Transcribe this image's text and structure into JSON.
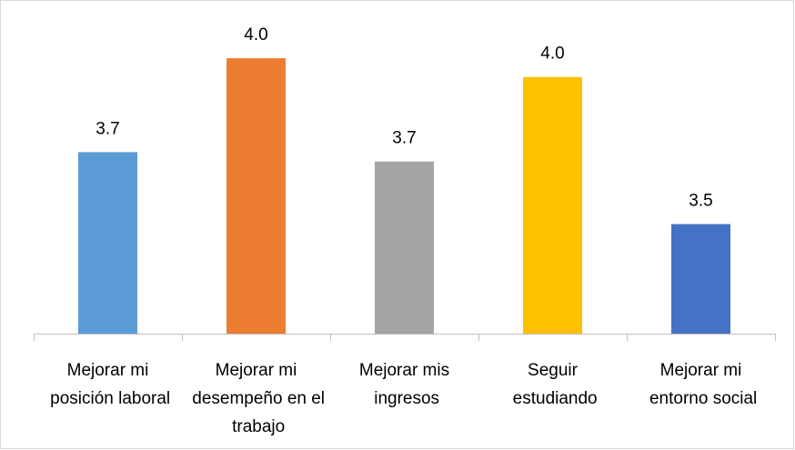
{
  "chart_data": {
    "type": "bar",
    "categories": [
      "Mejorar mi posición laboral",
      "Mejorar mi desempeño en el trabajo",
      "Mejorar mis ingresos",
      "Seguir estudiando",
      "Mejorar mi entorno social"
    ],
    "values": [
      3.73,
      4.03,
      3.7,
      3.97,
      3.5
    ],
    "value_labels": [
      "3.7",
      "4.0",
      "3.7",
      "4.0",
      "3.5"
    ],
    "colors": [
      "#5b9bd5",
      "#ed7d31",
      "#a5a5a5",
      "#ffc000",
      "#4472c4"
    ],
    "ylim": [
      3.15,
      4.1
    ],
    "grid": false
  }
}
